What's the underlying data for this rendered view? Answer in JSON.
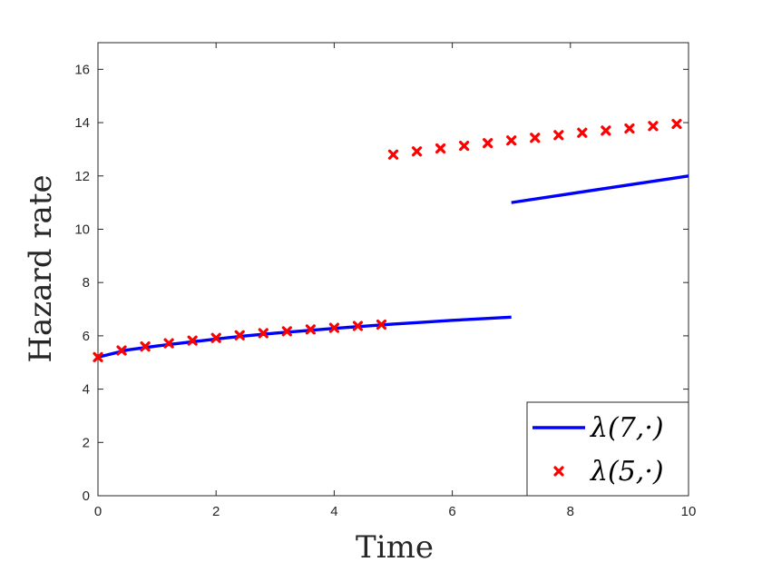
{
  "chart_data": {
    "type": "line",
    "title": "",
    "xlabel": "Time",
    "ylabel": "Hazard rate",
    "xlim": [
      0,
      10
    ],
    "ylim": [
      0,
      17
    ],
    "xticks": [
      0,
      2,
      4,
      6,
      8,
      10
    ],
    "yticks": [
      0,
      2,
      4,
      6,
      8,
      10,
      12,
      14,
      16
    ],
    "grid": false,
    "legend_position": "bottom-right",
    "series": [
      {
        "name": "λ(7,·)",
        "style": "line",
        "color": "#0000ff",
        "segments": [
          {
            "x": [
              0,
              0.5,
              1,
              1.5,
              2,
              2.5,
              3,
              3.5,
              4,
              4.5,
              5,
              5.5,
              6,
              6.5,
              7
            ],
            "y": [
              5.2,
              5.47,
              5.62,
              5.75,
              5.88,
              6.0,
              6.1,
              6.19,
              6.28,
              6.36,
              6.44,
              6.51,
              6.58,
              6.64,
              6.7
            ]
          },
          {
            "x": [
              7,
              10
            ],
            "y": [
              11.0,
              12.0
            ]
          }
        ]
      },
      {
        "name": "λ(5,·)",
        "style": "markers",
        "marker": "x",
        "color": "#ff0000",
        "segments": [
          {
            "x": [
              0,
              0.4,
              0.8,
              1.2,
              1.6,
              2.0,
              2.4,
              2.8,
              3.2,
              3.6,
              4.0,
              4.4,
              4.8
            ],
            "y": [
              5.2,
              5.45,
              5.6,
              5.72,
              5.82,
              5.92,
              6.02,
              6.1,
              6.17,
              6.24,
              6.3,
              6.37,
              6.42
            ]
          },
          {
            "x": [
              5.0,
              5.4,
              5.8,
              6.2,
              6.6,
              7.0,
              7.4,
              7.8,
              8.2,
              8.6,
              9.0,
              9.4,
              9.8
            ],
            "y": [
              12.8,
              12.92,
              13.03,
              13.13,
              13.23,
              13.33,
              13.43,
              13.53,
              13.62,
              13.7,
              13.78,
              13.87,
              13.95
            ]
          }
        ]
      }
    ]
  }
}
